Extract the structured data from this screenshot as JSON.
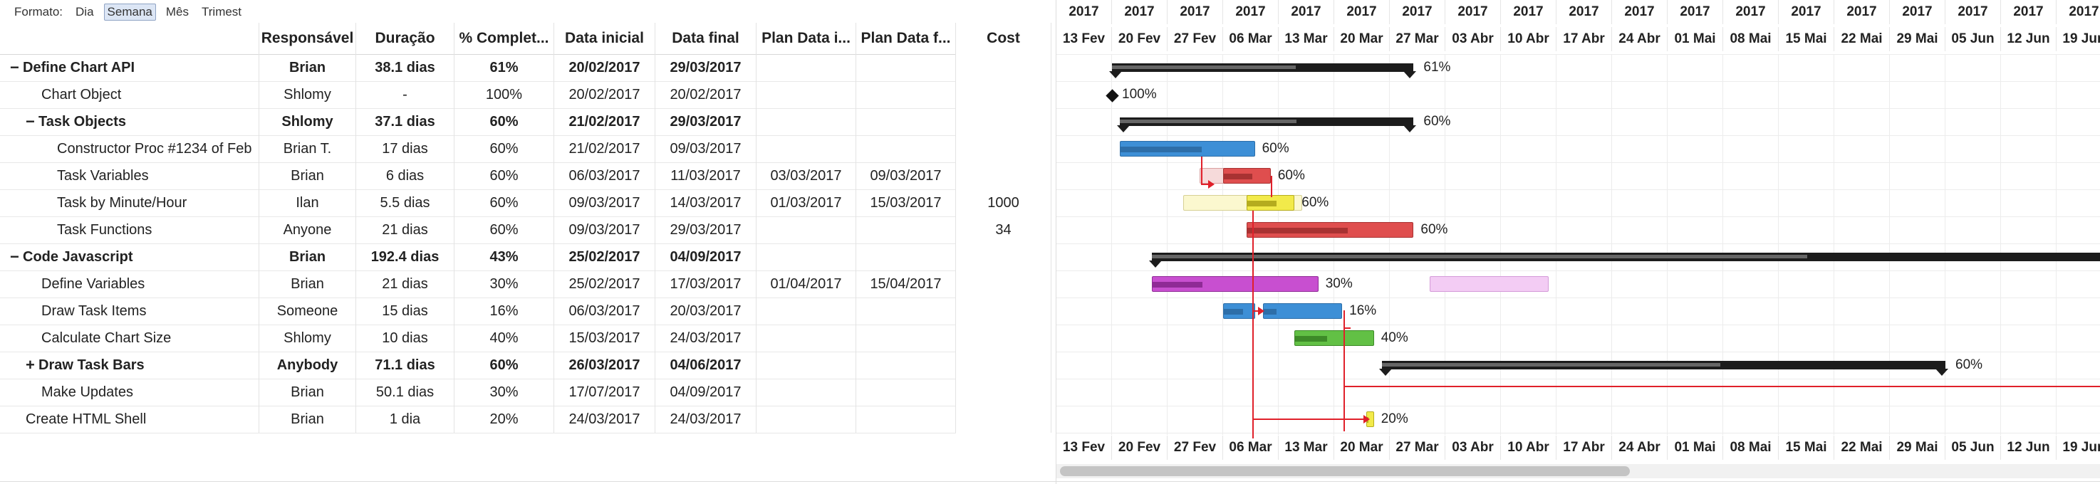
{
  "format_bar": {
    "label": "Formato:",
    "options": [
      "Dia",
      "Semana",
      "Mês",
      "Trimest"
    ],
    "selected": "Semana"
  },
  "columns": [
    "Responsável",
    "Duração",
    "% Complet...",
    "Data inicial",
    "Data final",
    "Plan Data i...",
    "Plan Data f...",
    "Cost"
  ],
  "tasks": [
    {
      "toggle": "−",
      "name": "Define Chart API",
      "resp": "Brian",
      "dur": "38.1 dias",
      "pct": "61%",
      "start": "20/02/2017",
      "end": "29/03/2017",
      "pstart": "",
      "pend": "",
      "cost": "",
      "bold": true,
      "level": 0
    },
    {
      "toggle": "",
      "name": "Chart Object",
      "resp": "Shlomy",
      "dur": "-",
      "pct": "100%",
      "start": "20/02/2017",
      "end": "20/02/2017",
      "pstart": "",
      "pend": "",
      "cost": "",
      "bold": false,
      "level": 1
    },
    {
      "toggle": "−",
      "name": "Task Objects",
      "resp": "Shlomy",
      "dur": "37.1 dias",
      "pct": "60%",
      "start": "21/02/2017",
      "end": "29/03/2017",
      "pstart": "",
      "pend": "",
      "cost": "",
      "bold": true,
      "level": 1
    },
    {
      "toggle": "",
      "name": "Constructor Proc #1234 of Feb",
      "resp": "Brian T.",
      "dur": "17 dias",
      "pct": "60%",
      "start": "21/02/2017",
      "end": "09/03/2017",
      "pstart": "",
      "pend": "",
      "cost": "",
      "bold": false,
      "level": 2
    },
    {
      "toggle": "",
      "name": "Task Variables",
      "resp": "Brian",
      "dur": "6 dias",
      "pct": "60%",
      "start": "06/03/2017",
      "end": "11/03/2017",
      "pstart": "03/03/2017",
      "pend": "09/03/2017",
      "cost": "",
      "bold": false,
      "level": 2
    },
    {
      "toggle": "",
      "name": "Task by Minute/Hour",
      "resp": "Ilan",
      "dur": "5.5 dias",
      "pct": "60%",
      "start": "09/03/2017",
      "end": "14/03/2017",
      "pstart": "01/03/2017",
      "pend": "15/03/2017",
      "cost": "1000",
      "bold": false,
      "level": 2
    },
    {
      "toggle": "",
      "name": "Task Functions",
      "resp": "Anyone",
      "dur": "21 dias",
      "pct": "60%",
      "start": "09/03/2017",
      "end": "29/03/2017",
      "pstart": "",
      "pend": "",
      "cost": "34",
      "bold": false,
      "level": 2
    },
    {
      "toggle": "−",
      "name": "Code Javascript",
      "resp": "Brian",
      "dur": "192.4 dias",
      "pct": "43%",
      "start": "25/02/2017",
      "end": "04/09/2017",
      "pstart": "",
      "pend": "",
      "cost": "",
      "bold": true,
      "level": 0
    },
    {
      "toggle": "",
      "name": "Define Variables",
      "resp": "Brian",
      "dur": "21 dias",
      "pct": "30%",
      "start": "25/02/2017",
      "end": "17/03/2017",
      "pstart": "01/04/2017",
      "pend": "15/04/2017",
      "cost": "",
      "bold": false,
      "level": 1
    },
    {
      "toggle": "",
      "name": "Draw Task Items",
      "resp": "Someone",
      "dur": "15 dias",
      "pct": "16%",
      "start": "06/03/2017",
      "end": "20/03/2017",
      "pstart": "",
      "pend": "",
      "cost": "",
      "bold": false,
      "level": 1
    },
    {
      "toggle": "",
      "name": "Calculate Chart Size",
      "resp": "Shlomy",
      "dur": "10 dias",
      "pct": "40%",
      "start": "15/03/2017",
      "end": "24/03/2017",
      "pstart": "",
      "pend": "",
      "cost": "",
      "bold": false,
      "level": 1
    },
    {
      "toggle": "+",
      "name": "Draw Task Bars",
      "resp": "Anybody",
      "dur": "71.1 dias",
      "pct": "60%",
      "start": "26/03/2017",
      "end": "04/06/2017",
      "pstart": "",
      "pend": "",
      "cost": "",
      "bold": true,
      "level": 1
    },
    {
      "toggle": "",
      "name": "Make Updates",
      "resp": "Brian",
      "dur": "50.1 dias",
      "pct": "30%",
      "start": "17/07/2017",
      "end": "04/09/2017",
      "pstart": "",
      "pend": "",
      "cost": "",
      "bold": false,
      "level": 1
    },
    {
      "toggle": "",
      "name": "Create HTML Shell",
      "resp": "Brian",
      "dur": "1 dia",
      "pct": "20%",
      "start": "24/03/2017",
      "end": "24/03/2017",
      "pstart": "",
      "pend": "",
      "cost": "",
      "bold": false,
      "level": 0
    }
  ],
  "timeline": {
    "years": [
      "2017",
      "2017",
      "2017",
      "2017",
      "2017",
      "2017",
      "2017",
      "2017",
      "2017",
      "2017",
      "2017",
      "2017",
      "2017",
      "2017",
      "2017",
      "2017",
      "2017",
      "2017",
      "2017"
    ],
    "weeks": [
      "13 Fev",
      "20 Fev",
      "27 Fev",
      "06 Mar",
      "13 Mar",
      "20 Mar",
      "27 Mar",
      "03 Abr",
      "10 Abr",
      "17 Abr",
      "24 Abr",
      "01 Mai",
      "08 Mai",
      "15 Mai",
      "22 Mai",
      "29 Mai",
      "05 Jun",
      "12 Jun",
      "19 Jun"
    ]
  },
  "bar_labels": [
    "61%",
    "100%",
    "60%",
    "60%",
    "60%",
    "60%",
    "60%",
    "30%",
    "16%",
    "40%",
    "60%",
    "20%"
  ],
  "colors": {
    "summary": "#1c1c1c",
    "blue": "#3d8fd6",
    "red": "#df4e4e",
    "yellow": "#f2ea4a",
    "magenta": "#c84fd0",
    "green": "#62c045",
    "dependency": "#e0202a"
  }
}
